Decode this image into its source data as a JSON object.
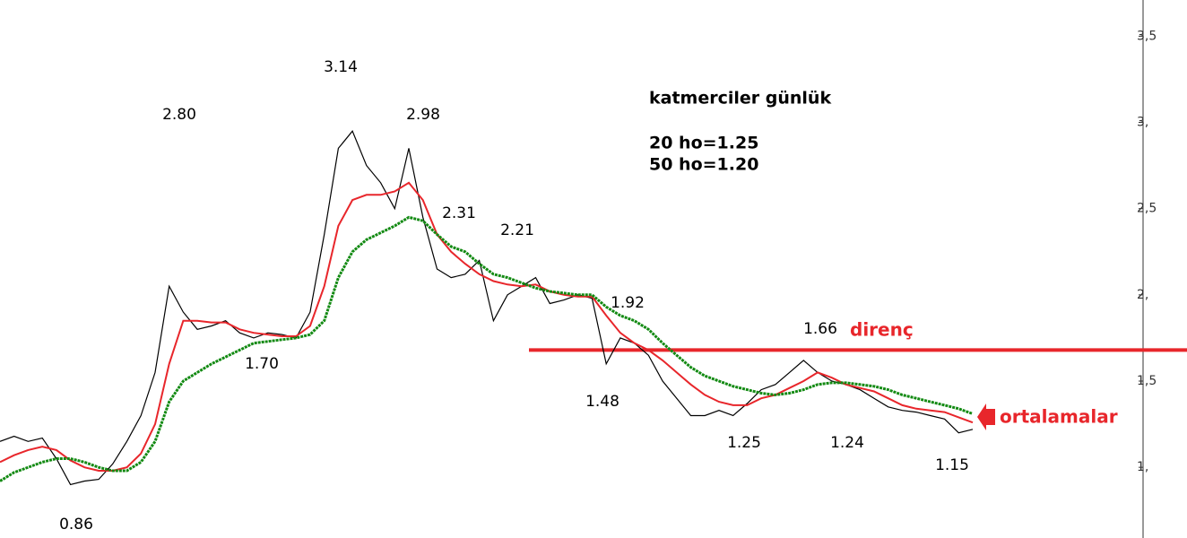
{
  "chart_data": {
    "type": "line",
    "info": [
      "katmerciler günlük",
      "20 ho=1.25",
      "50 ho=1.20"
    ],
    "categories": [
      null,
      null,
      null,
      null,
      null,
      null,
      null,
      null,
      null,
      null,
      null,
      null,
      null,
      null,
      null,
      null,
      null,
      null,
      null,
      null,
      null,
      null,
      null,
      null,
      null,
      null,
      null,
      null,
      null,
      null,
      null,
      null,
      null,
      null,
      null,
      null,
      null,
      null,
      null,
      null,
      null,
      null,
      null,
      null,
      null,
      null,
      null,
      null,
      null,
      null,
      null,
      null,
      null,
      null,
      null,
      null,
      null,
      null,
      null,
      null,
      null,
      null,
      null,
      null,
      null,
      null,
      null,
      null,
      null,
      null
    ],
    "series": [
      {
        "color": "#000000",
        "values": [
          1.15,
          1.18,
          1.15,
          1.17,
          1.05,
          0.9,
          0.92,
          0.93,
          1.02,
          1.15,
          1.3,
          1.55,
          2.05,
          1.9,
          1.8,
          1.82,
          1.85,
          1.78,
          1.75,
          1.78,
          1.77,
          1.75,
          1.9,
          2.35,
          2.85,
          2.95,
          2.75,
          2.65,
          2.5,
          2.85,
          2.45,
          2.15,
          2.1,
          2.12,
          2.2,
          1.85,
          2.0,
          2.05,
          2.1,
          1.95,
          1.97,
          2.0,
          1.98,
          1.6,
          1.75,
          1.72,
          1.65,
          1.5,
          1.4,
          1.3,
          1.3,
          1.33,
          1.3,
          1.37,
          1.45,
          1.48,
          1.55,
          1.62,
          1.55,
          1.5,
          1.48,
          1.45,
          1.4,
          1.35,
          1.33,
          1.32,
          1.3,
          1.28,
          1.2,
          1.22
        ]
      },
      {
        "color": "#e8262b",
        "values": [
          1.03,
          1.07,
          1.1,
          1.12,
          1.1,
          1.04,
          1.0,
          0.98,
          0.98,
          1.0,
          1.08,
          1.25,
          1.6,
          1.85,
          1.85,
          1.84,
          1.84,
          1.8,
          1.78,
          1.77,
          1.76,
          1.76,
          1.82,
          2.05,
          2.4,
          2.55,
          2.58,
          2.58,
          2.6,
          2.65,
          2.55,
          2.35,
          2.25,
          2.18,
          2.12,
          2.08,
          2.06,
          2.05,
          2.06,
          2.02,
          2.0,
          1.99,
          1.99,
          1.88,
          1.78,
          1.72,
          1.68,
          1.62,
          1.55,
          1.48,
          1.42,
          1.38,
          1.36,
          1.36,
          1.4,
          1.42,
          1.46,
          1.5,
          1.55,
          1.52,
          1.48,
          1.46,
          1.44,
          1.4,
          1.36,
          1.34,
          1.33,
          1.32,
          1.29,
          1.26
        ]
      },
      {
        "color": "#138a13",
        "values": [
          0.92,
          0.97,
          1.0,
          1.03,
          1.05,
          1.05,
          1.03,
          1.0,
          0.98,
          0.98,
          1.03,
          1.15,
          1.38,
          1.5,
          1.55,
          1.6,
          1.64,
          1.68,
          1.72,
          1.73,
          1.74,
          1.75,
          1.77,
          1.85,
          2.1,
          2.25,
          2.32,
          2.36,
          2.4,
          2.45,
          2.43,
          2.35,
          2.28,
          2.25,
          2.18,
          2.12,
          2.1,
          2.07,
          2.04,
          2.02,
          2.01,
          2.0,
          2.0,
          1.93,
          1.88,
          1.85,
          1.8,
          1.72,
          1.65,
          1.58,
          1.53,
          1.5,
          1.47,
          1.45,
          1.43,
          1.42,
          1.43,
          1.45,
          1.48,
          1.49,
          1.49,
          1.48,
          1.47,
          1.45,
          1.42,
          1.4,
          1.38,
          1.36,
          1.34,
          1.31
        ]
      }
    ],
    "annotations": [
      "3.14",
      "2.80",
      "2.98",
      "2.31",
      "2.21",
      "1.92",
      "1.70",
      "1.48",
      "1.66",
      "1.25",
      "1.24",
      "1.15",
      "0.86"
    ],
    "resistance": {
      "value": 1.68,
      "label": "direnç",
      "color": "#e8262b"
    },
    "arrow_label": "ortalamalar",
    "ylim": [
      0.59,
      3.71
    ],
    "yticks": [
      {
        "value": 1,
        "label": "1,"
      },
      {
        "value": 1.5,
        "label": "1,5"
      },
      {
        "value": 2,
        "label": "2,"
      },
      {
        "value": 2.5,
        "label": "2,5"
      },
      {
        "value": 3,
        "label": "3,"
      },
      {
        "value": 3.5,
        "label": "3,5"
      }
    ]
  }
}
